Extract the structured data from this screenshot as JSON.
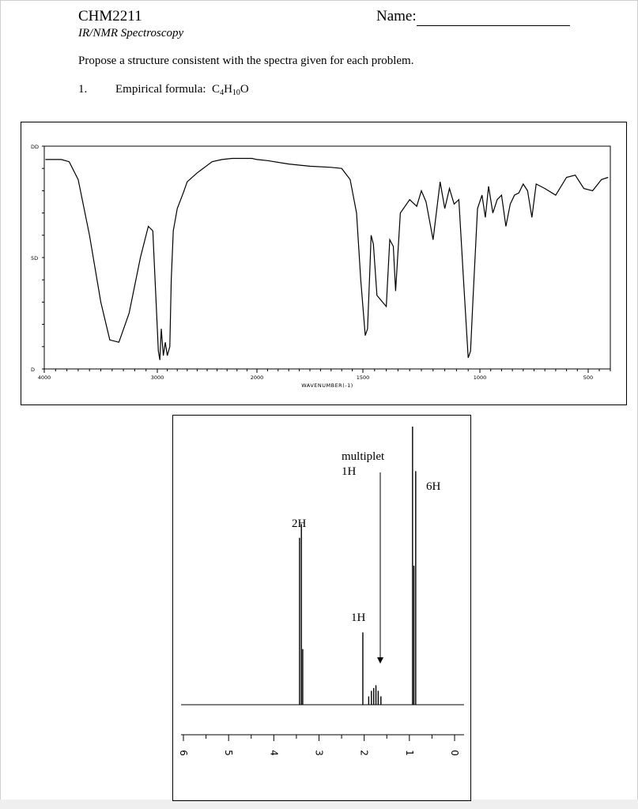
{
  "header": {
    "course": "CHM2211",
    "subtitle": "IR/NMR Spectroscopy",
    "name_label": "Name:"
  },
  "instructions": "Propose a structure consistent with the spectra given for each problem.",
  "problem": {
    "number": "1.",
    "label": "Empirical formula:",
    "formula_parts": [
      "C",
      "4",
      "H",
      "10",
      "O"
    ]
  },
  "chart_data": [
    {
      "type": "line",
      "xlabel": "WAVENUMBER(-1)",
      "ylabel": "",
      "xlim": [
        4000,
        400
      ],
      "ylim": [
        0,
        100
      ],
      "x_ticks": [
        "4000",
        "3000",
        "2000",
        "1500",
        "1000",
        "500"
      ],
      "y_ticks": [
        "0",
        "50",
        "100"
      ],
      "y_tick_labels": [
        "D",
        "5D",
        "DD"
      ],
      "series": [
        {
          "x": [
            3990,
            3850,
            3780,
            3700,
            3600,
            3500,
            3420,
            3340,
            3250,
            3150,
            3080,
            3040,
            2990,
            2975,
            2960,
            2940,
            2920,
            2900,
            2875,
            2860,
            2840,
            2800,
            2740,
            2700,
            2600,
            2450,
            2350,
            2250,
            2150,
            2050,
            2000,
            1950,
            1850,
            1750,
            1650,
            1600,
            1560,
            1530,
            1510,
            1490,
            1480,
            1470,
            1465,
            1455,
            1440,
            1400,
            1385,
            1370,
            1360,
            1340,
            1300,
            1270,
            1250,
            1230,
            1200,
            1170,
            1150,
            1130,
            1110,
            1090,
            1070,
            1050,
            1040,
            1030,
            1010,
            990,
            975,
            960,
            940,
            920,
            900,
            880,
            860,
            840,
            820,
            800,
            780,
            760,
            740,
            700,
            650,
            600,
            560,
            520,
            480,
            440,
            410
          ],
          "y": [
            94,
            94,
            93,
            85,
            60,
            30,
            13,
            12,
            25,
            50,
            64,
            62,
            8,
            4,
            18,
            6,
            12,
            6,
            10,
            40,
            62,
            72,
            79,
            84,
            88,
            93,
            94,
            94.5,
            94.5,
            94.5,
            94,
            93.5,
            92,
            91,
            90.5,
            90,
            85,
            70,
            40,
            15,
            18,
            45,
            60,
            56,
            33,
            28,
            58,
            55,
            35,
            70,
            76,
            73,
            80,
            75,
            58,
            84,
            72,
            81,
            74,
            76,
            40,
            5,
            8,
            30,
            72,
            78,
            68,
            82,
            70,
            76,
            78,
            64,
            74,
            78,
            79,
            83,
            80,
            68,
            83,
            81,
            78,
            86,
            87,
            81,
            80,
            85,
            86
          ]
        }
      ]
    },
    {
      "type": "line",
      "xlabel": "",
      "ylabel": "",
      "xlim": [
        6,
        0
      ],
      "x_ticks": [
        "6",
        "5",
        "4",
        "3",
        "2",
        "1",
        "0"
      ],
      "peaks": [
        {
          "ppm": 3.43,
          "height": 0.6
        },
        {
          "ppm": 3.39,
          "height": 0.65
        },
        {
          "ppm": 3.36,
          "height": 0.2
        },
        {
          "ppm": 2.03,
          "height": 0.26
        },
        {
          "ppm": 1.9,
          "height": 0.03
        },
        {
          "ppm": 1.84,
          "height": 0.05
        },
        {
          "ppm": 1.79,
          "height": 0.06
        },
        {
          "ppm": 1.74,
          "height": 0.07
        },
        {
          "ppm": 1.69,
          "height": 0.05
        },
        {
          "ppm": 1.63,
          "height": 0.03
        },
        {
          "ppm": 0.93,
          "height": 1.0
        },
        {
          "ppm": 0.9,
          "height": 0.5
        },
        {
          "ppm": 0.86,
          "height": 0.84
        }
      ],
      "annotations": [
        {
          "text": "2H",
          "ppm": 3.45
        },
        {
          "text": "1H",
          "ppm": 2.05
        },
        {
          "text": "multiplet",
          "ppm": 2.0
        },
        {
          "text": "1H",
          "ppm": 2.1
        },
        {
          "text": "6H",
          "ppm": 0.45
        }
      ]
    }
  ]
}
